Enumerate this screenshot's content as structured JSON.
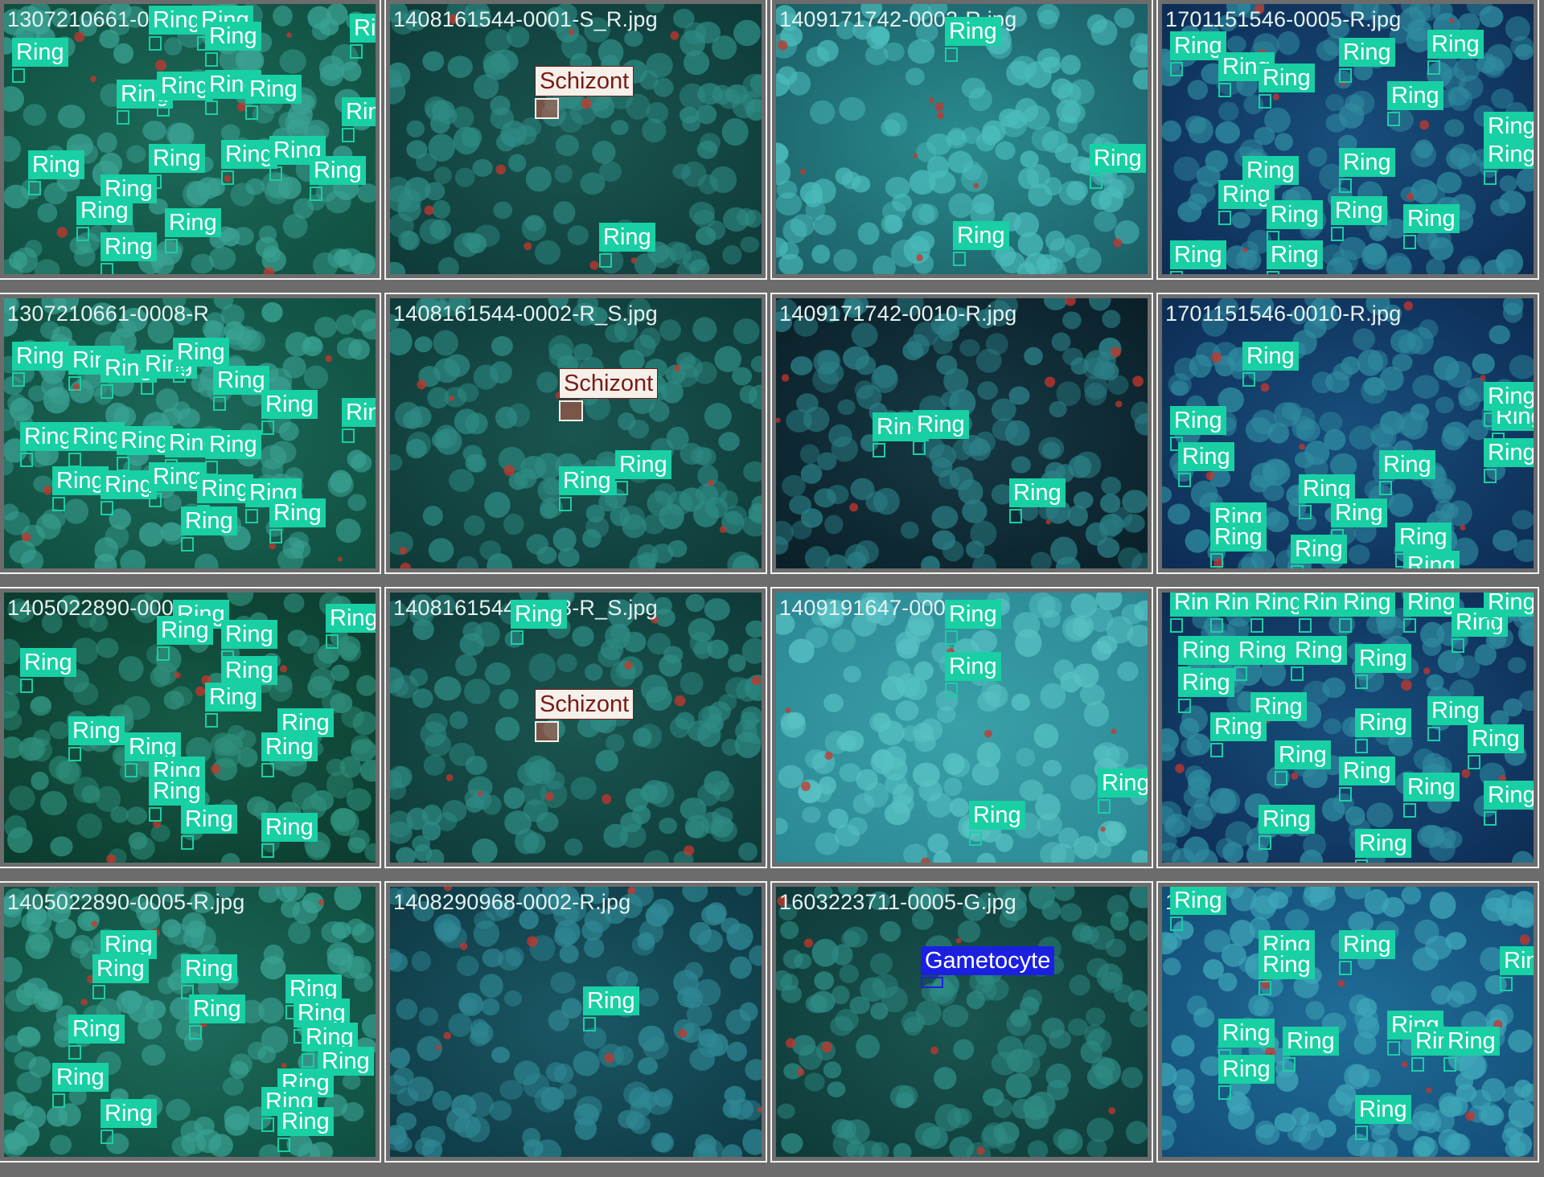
{
  "colors": {
    "ring": "#19cfa4",
    "schizont_label_bg": "#f5f0ea",
    "schizont_text": "#7a1a14",
    "gametocyte": "#1b20e0",
    "separator": "#f2f2f2",
    "frame": "#6c6c6c"
  },
  "tiles": [
    {
      "filename": "1307210661-00",
      "palette": "green",
      "labels": [
        {
          "text": "Ring",
          "cls": "ring"
        },
        {
          "text": "Ring",
          "cls": "ring"
        },
        {
          "text": "Ring",
          "cls": "ring"
        },
        {
          "text": "Ring",
          "cls": "ring"
        },
        {
          "text": "Ring",
          "cls": "ring"
        },
        {
          "text": "Ring",
          "cls": "ring"
        },
        {
          "text": "Ring",
          "cls": "ring"
        },
        {
          "text": "Ring",
          "cls": "ring"
        },
        {
          "text": "Ring",
          "cls": "ring"
        },
        {
          "text": "Ring",
          "cls": "ring"
        },
        {
          "text": "Ring",
          "cls": "ring"
        },
        {
          "text": "Ring",
          "cls": "ring"
        },
        {
          "text": "Ring",
          "cls": "ring"
        },
        {
          "text": "Ring",
          "cls": "ring"
        },
        {
          "text": "Ring",
          "cls": "ring"
        },
        {
          "text": "Ring",
          "cls": "ring"
        },
        {
          "text": "Ring",
          "cls": "ring"
        },
        {
          "text": "Ring",
          "cls": "ring"
        },
        {
          "text": "Ring",
          "cls": "ring"
        }
      ]
    },
    {
      "filename": "1408161544-0001-S_R.jpg",
      "palette": "teal-dark",
      "labels": [
        {
          "text": "Schizont",
          "cls": "schizont"
        },
        {
          "text": "Ring",
          "cls": "ring"
        }
      ]
    },
    {
      "filename": "1409171742-0003-R.jpg",
      "palette": "teal-light",
      "labels": [
        {
          "text": "Ring",
          "cls": "ring"
        },
        {
          "text": "Ring",
          "cls": "ring"
        },
        {
          "text": "Ring",
          "cls": "ring"
        }
      ]
    },
    {
      "filename": "1701151546-0005-R.jpg",
      "palette": "blue",
      "labels": [
        {
          "text": "Ring",
          "cls": "ring"
        },
        {
          "text": "Ring",
          "cls": "ring"
        },
        {
          "text": "Ring",
          "cls": "ring"
        },
        {
          "text": "Ring",
          "cls": "ring"
        },
        {
          "text": "Ring",
          "cls": "ring"
        },
        {
          "text": "Ring",
          "cls": "ring"
        },
        {
          "text": "Ring",
          "cls": "ring"
        },
        {
          "text": "Ring",
          "cls": "ring"
        },
        {
          "text": "Ring",
          "cls": "ring"
        },
        {
          "text": "Ring",
          "cls": "ring"
        },
        {
          "text": "Ring",
          "cls": "ring"
        },
        {
          "text": "Ring",
          "cls": "ring"
        },
        {
          "text": "Ring",
          "cls": "ring"
        },
        {
          "text": "Ring",
          "cls": "ring"
        },
        {
          "text": "Ring",
          "cls": "ring"
        },
        {
          "text": "Ring",
          "cls": "ring"
        }
      ]
    },
    {
      "filename": "1307210661-0008-R",
      "palette": "green",
      "labels": [
        {
          "text": "Ring",
          "cls": "ring"
        },
        {
          "text": "Ring",
          "cls": "ring"
        },
        {
          "text": "Ring",
          "cls": "ring"
        },
        {
          "text": "Ring",
          "cls": "ring"
        },
        {
          "text": "Ring",
          "cls": "ring"
        },
        {
          "text": "Ring",
          "cls": "ring"
        },
        {
          "text": "Ring",
          "cls": "ring"
        },
        {
          "text": "Ring",
          "cls": "ring"
        },
        {
          "text": "Ring",
          "cls": "ring"
        },
        {
          "text": "Ring",
          "cls": "ring"
        },
        {
          "text": "Ring",
          "cls": "ring"
        },
        {
          "text": "Ring",
          "cls": "ring"
        },
        {
          "text": "Ring",
          "cls": "ring"
        },
        {
          "text": "Ring",
          "cls": "ring"
        },
        {
          "text": "Ring",
          "cls": "ring"
        },
        {
          "text": "Ring",
          "cls": "ring"
        },
        {
          "text": "Ring",
          "cls": "ring"
        },
        {
          "text": "Ring",
          "cls": "ring"
        },
        {
          "text": "Ring",
          "cls": "ring"
        },
        {
          "text": "Ring",
          "cls": "ring"
        }
      ]
    },
    {
      "filename": "1408161544-0002-R_S.jpg",
      "palette": "teal-dark",
      "labels": [
        {
          "text": "Schizont",
          "cls": "schizont"
        },
        {
          "text": "Ring",
          "cls": "ring"
        },
        {
          "text": "Ring",
          "cls": "ring"
        }
      ]
    },
    {
      "filename": "1409171742-0010-R.jpg",
      "palette": "teal-night",
      "labels": [
        {
          "text": "Ring",
          "cls": "ring"
        },
        {
          "text": "Ring",
          "cls": "ring"
        },
        {
          "text": "Ring",
          "cls": "ring"
        }
      ]
    },
    {
      "filename": "1701151546-0010-R.jpg",
      "palette": "blue",
      "labels": [
        {
          "text": "Ring",
          "cls": "ring"
        },
        {
          "text": "Ring",
          "cls": "ring"
        },
        {
          "text": "Ring",
          "cls": "ring"
        },
        {
          "text": "Ring",
          "cls": "ring"
        },
        {
          "text": "Ring",
          "cls": "ring"
        },
        {
          "text": "Ring",
          "cls": "ring"
        },
        {
          "text": "Ring",
          "cls": "ring"
        },
        {
          "text": "Ring",
          "cls": "ring"
        },
        {
          "text": "Ring",
          "cls": "ring"
        },
        {
          "text": "Ring",
          "cls": "ring"
        },
        {
          "text": "Ring",
          "cls": "ring"
        },
        {
          "text": "Ring",
          "cls": "ring"
        },
        {
          "text": "Ring",
          "cls": "ring"
        },
        {
          "text": "Ring",
          "cls": "ring"
        }
      ]
    },
    {
      "filename": "1405022890-0004",
      "palette": "green-dark",
      "labels": [
        {
          "text": "Ring",
          "cls": "ring"
        },
        {
          "text": "Ring",
          "cls": "ring"
        },
        {
          "text": "Ring",
          "cls": "ring"
        },
        {
          "text": "Ring",
          "cls": "ring"
        },
        {
          "text": "Ring",
          "cls": "ring"
        },
        {
          "text": "Ring",
          "cls": "ring"
        },
        {
          "text": "Ring",
          "cls": "ring"
        },
        {
          "text": "Ring",
          "cls": "ring"
        },
        {
          "text": "Ring",
          "cls": "ring"
        },
        {
          "text": "Ring",
          "cls": "ring"
        },
        {
          "text": "Ring",
          "cls": "ring"
        },
        {
          "text": "Ring",
          "cls": "ring"
        },
        {
          "text": "Ring",
          "cls": "ring"
        },
        {
          "text": "Ring",
          "cls": "ring"
        },
        {
          "text": "Ring",
          "cls": "ring"
        }
      ]
    },
    {
      "filename": "1408161544-0003-R_S.jpg",
      "palette": "teal-dark",
      "labels": [
        {
          "text": "Ring",
          "cls": "ring"
        },
        {
          "text": "Schizont",
          "cls": "schizont"
        }
      ]
    },
    {
      "filename": "1409191647-0006-",
      "palette": "teal-pale",
      "labels": [
        {
          "text": "Ring",
          "cls": "ring"
        },
        {
          "text": "Ring",
          "cls": "ring"
        },
        {
          "text": "Ring",
          "cls": "ring"
        },
        {
          "text": "Ring",
          "cls": "ring"
        }
      ]
    },
    {
      "filename": "",
      "palette": "blue",
      "labels": [
        {
          "text": "Ring",
          "cls": "ring"
        },
        {
          "text": "Ring",
          "cls": "ring"
        },
        {
          "text": "Ring",
          "cls": "ring"
        },
        {
          "text": "Ring",
          "cls": "ring"
        },
        {
          "text": "Ring",
          "cls": "ring"
        },
        {
          "text": "Ring",
          "cls": "ring"
        },
        {
          "text": "Ring",
          "cls": "ring"
        },
        {
          "text": "Ring",
          "cls": "ring"
        },
        {
          "text": "Ring",
          "cls": "ring"
        },
        {
          "text": "Ring",
          "cls": "ring"
        },
        {
          "text": "Ring",
          "cls": "ring"
        },
        {
          "text": "Ring",
          "cls": "ring"
        },
        {
          "text": "Ring",
          "cls": "ring"
        },
        {
          "text": "Ring",
          "cls": "ring"
        },
        {
          "text": "Ring",
          "cls": "ring"
        },
        {
          "text": "Ring",
          "cls": "ring"
        },
        {
          "text": "Ring",
          "cls": "ring"
        },
        {
          "text": "Ring",
          "cls": "ring"
        },
        {
          "text": "Ring",
          "cls": "ring"
        },
        {
          "text": "Ring",
          "cls": "ring"
        },
        {
          "text": "Ring",
          "cls": "ring"
        },
        {
          "text": "Ring",
          "cls": "ring"
        },
        {
          "text": "Ring",
          "cls": "ring"
        },
        {
          "text": "Ring",
          "cls": "ring"
        }
      ]
    },
    {
      "filename": "1405022890-0005-R.jpg",
      "palette": "green",
      "labels": [
        {
          "text": "Ring",
          "cls": "ring"
        },
        {
          "text": "Ring",
          "cls": "ring"
        },
        {
          "text": "Ring",
          "cls": "ring"
        },
        {
          "text": "Ring",
          "cls": "ring"
        },
        {
          "text": "Ring",
          "cls": "ring"
        },
        {
          "text": "Ring",
          "cls": "ring"
        },
        {
          "text": "Ring",
          "cls": "ring"
        },
        {
          "text": "Ring",
          "cls": "ring"
        },
        {
          "text": "Ring",
          "cls": "ring"
        },
        {
          "text": "Ring",
          "cls": "ring"
        },
        {
          "text": "Ring",
          "cls": "ring"
        },
        {
          "text": "Ring",
          "cls": "ring"
        },
        {
          "text": "Ring",
          "cls": "ring"
        },
        {
          "text": "Ring",
          "cls": "ring"
        }
      ]
    },
    {
      "filename": "1408290968-0002-R.jpg",
      "palette": "teal-deep",
      "labels": [
        {
          "text": "Ring",
          "cls": "ring"
        }
      ]
    },
    {
      "filename": "1603223711-0005-G.jpg",
      "palette": "teal-dark",
      "labels": [
        {
          "text": "Gametocyte",
          "cls": "gametocyte"
        }
      ]
    },
    {
      "filename": "17042",
      "palette": "blue-light",
      "labels": [
        {
          "text": "Ring",
          "cls": "ring"
        },
        {
          "text": "Ring",
          "cls": "ring"
        },
        {
          "text": "Ring",
          "cls": "ring"
        },
        {
          "text": "Ring",
          "cls": "ring"
        },
        {
          "text": "Ring",
          "cls": "ring"
        },
        {
          "text": "Ring",
          "cls": "ring"
        },
        {
          "text": "Ring",
          "cls": "ring"
        },
        {
          "text": "Ring",
          "cls": "ring"
        },
        {
          "text": "Ring",
          "cls": "ring"
        },
        {
          "text": "Ring",
          "cls": "ring"
        },
        {
          "text": "Ring",
          "cls": "ring"
        },
        {
          "text": "Ring",
          "cls": "ring"
        }
      ]
    }
  ]
}
